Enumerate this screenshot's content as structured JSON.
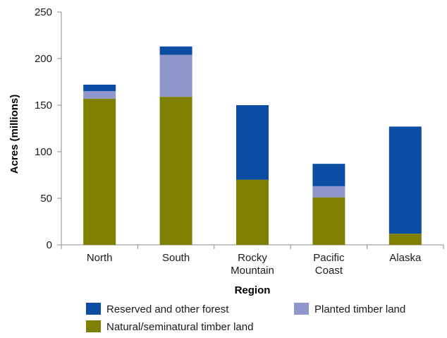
{
  "chart_data": {
    "type": "bar",
    "stacked": true,
    "categories": [
      [
        "North"
      ],
      [
        "South"
      ],
      [
        "Rocky",
        "Mountain"
      ],
      [
        "Pacific",
        "Coast"
      ],
      [
        "Alaska"
      ]
    ],
    "series": [
      {
        "name": "Natural/seminatural timber land",
        "color": "#808000",
        "values": [
          157,
          159,
          70,
          51,
          12
        ]
      },
      {
        "name": "Planted timber land",
        "color": "#8e96cc",
        "values": [
          8,
          45,
          0,
          12,
          0
        ]
      },
      {
        "name": "Reserved and other forest",
        "color": "#0a4da2",
        "values": [
          7,
          9,
          80,
          24,
          115
        ]
      }
    ],
    "xlabel": "Region",
    "ylabel": "Acres (millions)",
    "ylim": [
      0,
      250
    ],
    "yticks": [
      0,
      50,
      100,
      150,
      200,
      250
    ],
    "legend_order": [
      "Reserved and other forest",
      "Planted timber land",
      "Natural/seminatural timber land"
    ],
    "legend_position": "bottom",
    "grid": false
  }
}
